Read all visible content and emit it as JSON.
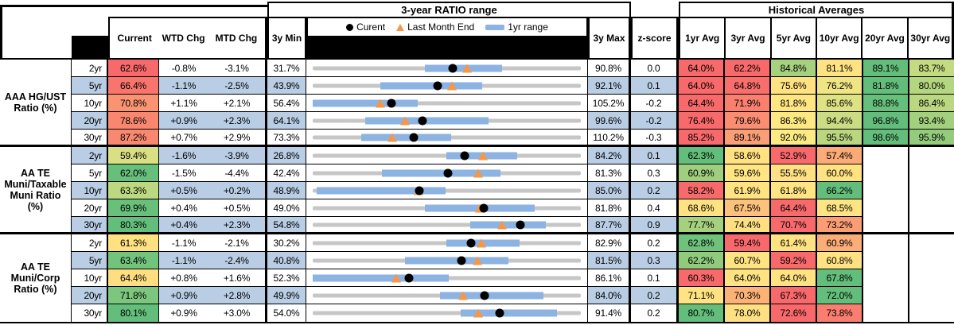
{
  "header": {
    "chart_section_title": "3-year RATIO range",
    "hist_section_title": "Historical Averages",
    "cols": {
      "current": "Current",
      "wtd": "WTD Chg",
      "mtd": "MTD Chg",
      "min": "3y Min",
      "max": "3y Max",
      "z": "z-score"
    },
    "avg_cols": [
      "1yr Avg",
      "3yr Avg",
      "5yr Avg",
      "10yr Avg",
      "20yr Avg",
      "30yr Avg"
    ],
    "legend": {
      "current": "Curent",
      "last_month": "Last Month End",
      "range": "1yr range"
    }
  },
  "colors": {
    "stripe_blue": "#B9CDE4",
    "track_gray": "#C6C6C6",
    "range_bar_blue": "#8DB3E2",
    "triangle_orange": "#F79646",
    "scale_red": "#F8696B",
    "scale_yellow": "#FFE383",
    "scale_green": "#63BE7B"
  },
  "groups": [
    {
      "label": "AAA HG/UST\nRatio (%)",
      "rows": [
        {
          "tenor": "2yr",
          "current": "62.6%",
          "cbg": "#F8696B",
          "wtd": "-0.8%",
          "mtd": "-3.1%",
          "min": "31.7%",
          "max": "90.8%",
          "z": "0.0",
          "avgs": [
            {
              "v": "64.0%",
              "bg": "#F8696B"
            },
            {
              "v": "62.2%",
              "bg": "#F8696B"
            },
            {
              "v": "84.8%",
              "bg": "#A6D17F"
            },
            {
              "v": "81.1%",
              "bg": "#FFE383"
            },
            {
              "v": "89.1%",
              "bg": "#63BE7B"
            },
            {
              "v": "83.7%",
              "bg": "#C4DB81"
            }
          ]
        },
        {
          "tenor": "5yr",
          "current": "66.4%",
          "cbg": "#F8756E",
          "wtd": "-1.1%",
          "mtd": "-2.5%",
          "min": "43.9%",
          "max": "92.1%",
          "z": "0.1",
          "avgs": [
            {
              "v": "64.0%",
              "bg": "#F8696B"
            },
            {
              "v": "64.8%",
              "bg": "#F86E6D"
            },
            {
              "v": "75.6%",
              "bg": "#FFE282"
            },
            {
              "v": "76.2%",
              "bg": "#F0E584"
            },
            {
              "v": "81.8%",
              "bg": "#63BE7B"
            },
            {
              "v": "80.0%",
              "bg": "#B5D680"
            }
          ]
        },
        {
          "tenor": "10yr",
          "current": "70.8%",
          "cbg": "#F99372",
          "wtd": "+1.1%",
          "mtd": "+2.1%",
          "min": "56.4%",
          "max": "105.2%",
          "z": "-0.2",
          "avgs": [
            {
              "v": "64.4%",
              "bg": "#F8696B"
            },
            {
              "v": "71.9%",
              "bg": "#F9806F"
            },
            {
              "v": "81.8%",
              "bg": "#FEE683"
            },
            {
              "v": "85.6%",
              "bg": "#DFE284"
            },
            {
              "v": "88.8%",
              "bg": "#66BF7B"
            },
            {
              "v": "86.4%",
              "bg": "#BBD880"
            }
          ]
        },
        {
          "tenor": "20yr",
          "current": "78.6%",
          "cbg": "#F98770",
          "wtd": "+0.9%",
          "mtd": "+2.3%",
          "min": "64.1%",
          "max": "99.6%",
          "z": "-0.2",
          "avgs": [
            {
              "v": "76.4%",
              "bg": "#F8696B"
            },
            {
              "v": "79.6%",
              "bg": "#FA8D72"
            },
            {
              "v": "86.3%",
              "bg": "#FDE883"
            },
            {
              "v": "94.4%",
              "bg": "#CADD82"
            },
            {
              "v": "96.8%",
              "bg": "#63BE7B"
            },
            {
              "v": "93.4%",
              "bg": "#A2D07E"
            }
          ]
        },
        {
          "tenor": "30yr",
          "current": "87.2%",
          "cbg": "#F98871",
          "wtd": "+0.7%",
          "mtd": "+2.9%",
          "min": "73.3%",
          "max": "110.2%",
          "z": "-0.3",
          "avgs": [
            {
              "v": "85.2%",
              "bg": "#F8696B"
            },
            {
              "v": "89.1%",
              "bg": "#FA9E76"
            },
            {
              "v": "92.0%",
              "bg": "#FCEA84"
            },
            {
              "v": "95.5%",
              "bg": "#BAD780"
            },
            {
              "v": "98.6%",
              "bg": "#63BE7B"
            },
            {
              "v": "95.9%",
              "bg": "#94CB7D"
            }
          ]
        }
      ]
    },
    {
      "label": "AA TE\nMuni/Taxable\nMuni Ratio\n(%)",
      "rows": [
        {
          "tenor": "2yr",
          "current": "59.4%",
          "cbg": "#D9E083",
          "wtd": "-1.6%",
          "mtd": "-3.9%",
          "min": "26.8%",
          "max": "84.2%",
          "z": "0.1",
          "avgs": [
            {
              "v": "62.3%",
              "bg": "#63BE7B"
            },
            {
              "v": "58.6%",
              "bg": "#FFE182"
            },
            {
              "v": "52.9%",
              "bg": "#F8696B"
            },
            {
              "v": "57.4%",
              "bg": "#FBAB77"
            },
            null,
            null
          ]
        },
        {
          "tenor": "5yr",
          "current": "62.0%",
          "cbg": "#66BF7B",
          "wtd": "-1.5%",
          "mtd": "-4.4%",
          "min": "42.4%",
          "max": "81.3%",
          "z": "0.3",
          "avgs": [
            {
              "v": "60.9%",
              "bg": "#9FCE7E"
            },
            {
              "v": "59.6%",
              "bg": "#FFE584"
            },
            {
              "v": "55.5%",
              "bg": "#FFE082"
            },
            {
              "v": "60.0%",
              "bg": "#FFE282"
            },
            null,
            null
          ]
        },
        {
          "tenor": "10yr",
          "current": "63.3%",
          "cbg": "#BCD880",
          "wtd": "+0.5%",
          "mtd": "+0.2%",
          "min": "48.9%",
          "max": "85.0%",
          "z": "0.2",
          "avgs": [
            {
              "v": "58.2%",
              "bg": "#F8696B"
            },
            {
              "v": "61.9%",
              "bg": "#FFE383"
            },
            {
              "v": "61.8%",
              "bg": "#FEE483"
            },
            {
              "v": "66.2%",
              "bg": "#63BE7B"
            },
            null,
            null
          ]
        },
        {
          "tenor": "20yr",
          "current": "69.9%",
          "cbg": "#68C07B",
          "wtd": "+0.4%",
          "mtd": "+0.5%",
          "min": "49.0%",
          "max": "81.8%",
          "z": "0.4",
          "avgs": [
            {
              "v": "68.6%",
              "bg": "#FFE382"
            },
            {
              "v": "67.5%",
              "bg": "#FCC17B"
            },
            {
              "v": "64.4%",
              "bg": "#F8696B"
            },
            {
              "v": "68.5%",
              "bg": "#FEE483"
            },
            null,
            null
          ]
        },
        {
          "tenor": "30yr",
          "current": "80.3%",
          "cbg": "#63BE7B",
          "wtd": "+0.4%",
          "mtd": "+2.3%",
          "min": "54.8%",
          "max": "87.7%",
          "z": "0.9",
          "avgs": [
            {
              "v": "77.7%",
              "bg": "#A5D17F"
            },
            {
              "v": "74.4%",
              "bg": "#FEE083"
            },
            {
              "v": "70.7%",
              "bg": "#F8696B"
            },
            {
              "v": "73.2%",
              "bg": "#FA9D75"
            },
            null,
            null
          ]
        }
      ]
    },
    {
      "label": "AA TE\nMuni/Corp\nRatio (%)",
      "rows": [
        {
          "tenor": "2yr",
          "current": "61.3%",
          "cbg": "#FFE182",
          "wtd": "-1.1%",
          "mtd": "-2.1%",
          "min": "30.2%",
          "max": "82.9%",
          "z": "0.2",
          "avgs": [
            {
              "v": "62.8%",
              "bg": "#6FC27C"
            },
            {
              "v": "59.4%",
              "bg": "#F8696B"
            },
            {
              "v": "61.4%",
              "bg": "#FFE383"
            },
            {
              "v": "60.9%",
              "bg": "#FBAD78"
            },
            null,
            null
          ]
        },
        {
          "tenor": "5yr",
          "current": "63.4%",
          "cbg": "#72C37C",
          "wtd": "-1.1%",
          "mtd": "-2.4%",
          "min": "40.8%",
          "max": "81.5%",
          "z": "0.3",
          "avgs": [
            {
              "v": "62.2%",
              "bg": "#8FCA7D"
            },
            {
              "v": "60.7%",
              "bg": "#FFE383"
            },
            {
              "v": "59.2%",
              "bg": "#F8696B"
            },
            {
              "v": "60.8%",
              "bg": "#FFE283"
            },
            null,
            null
          ]
        },
        {
          "tenor": "10yr",
          "current": "64.4%",
          "cbg": "#FEDE80",
          "wtd": "+0.8%",
          "mtd": "+1.6%",
          "min": "52.3%",
          "max": "86.1%",
          "z": "0.1",
          "avgs": [
            {
              "v": "60.3%",
              "bg": "#F8696B"
            },
            {
              "v": "64.0%",
              "bg": "#FFE383"
            },
            {
              "v": "64.0%",
              "bg": "#FFE383"
            },
            {
              "v": "67.8%",
              "bg": "#63BE7B"
            },
            null,
            null
          ]
        },
        {
          "tenor": "20yr",
          "current": "71.8%",
          "cbg": "#7CC67D",
          "wtd": "+0.9%",
          "mtd": "+2.8%",
          "min": "49.9%",
          "max": "84.0%",
          "z": "0.2",
          "avgs": [
            {
              "v": "71.1%",
              "bg": "#FFE382"
            },
            {
              "v": "70.3%",
              "bg": "#FBB277"
            },
            {
              "v": "67.3%",
              "bg": "#F8696B"
            },
            {
              "v": "72.0%",
              "bg": "#63BE7B"
            },
            null,
            null
          ]
        },
        {
          "tenor": "30yr",
          "current": "80.1%",
          "cbg": "#63BE7B",
          "wtd": "+0.9%",
          "mtd": "+3.0%",
          "min": "54.0%",
          "max": "91.4%",
          "z": "0.2",
          "avgs": [
            {
              "v": "80.7%",
              "bg": "#63BE7B"
            },
            {
              "v": "78.0%",
              "bg": "#FEE083"
            },
            {
              "v": "72.6%",
              "bg": "#F8696B"
            },
            {
              "v": "73.8%",
              "bg": "#F97E6F"
            },
            null,
            null
          ]
        }
      ]
    }
  ],
  "chart_data": {
    "type": "bullet-range",
    "title": "3-year RATIO range",
    "legend": [
      "Curent (dot)",
      "Last Month End (triangle)",
      "1yr range (bar)"
    ],
    "axis": "each row scaled from its own 3y Min to 3y Max",
    "rows": [
      {
        "group": "AAA HG/UST",
        "tenor": "2yr",
        "min3y": 31.7,
        "max3y": 90.8,
        "current": 62.6,
        "last_month_end": 65.7,
        "yr1_low": 56.4,
        "yr1_high": 73.4
      },
      {
        "group": "AAA HG/UST",
        "tenor": "5yr",
        "min3y": 43.9,
        "max3y": 92.1,
        "current": 66.4,
        "last_month_end": 68.9,
        "yr1_low": 56.0,
        "yr1_high": 74.3
      },
      {
        "group": "AAA HG/UST",
        "tenor": "10yr",
        "min3y": 56.4,
        "max3y": 105.2,
        "current": 70.8,
        "last_month_end": 68.7,
        "yr1_low": 56.4,
        "yr1_high": 75.5
      },
      {
        "group": "AAA HG/UST",
        "tenor": "20yr",
        "min3y": 64.1,
        "max3y": 99.6,
        "current": 78.6,
        "last_month_end": 76.3,
        "yr1_low": 71.1,
        "yr1_high": 87.4
      },
      {
        "group": "AAA HG/UST",
        "tenor": "30yr",
        "min3y": 73.3,
        "max3y": 110.2,
        "current": 87.2,
        "last_month_end": 84.3,
        "yr1_low": 80.0,
        "yr1_high": 92.4
      },
      {
        "group": "AA TE Muni/Taxable",
        "tenor": "2yr",
        "min3y": 26.8,
        "max3y": 84.2,
        "current": 59.4,
        "last_month_end": 63.3,
        "yr1_low": 55.4,
        "yr1_high": 70.6
      },
      {
        "group": "AA TE Muni/Taxable",
        "tenor": "5yr",
        "min3y": 42.4,
        "max3y": 81.3,
        "current": 62.0,
        "last_month_end": 66.4,
        "yr1_low": 52.4,
        "yr1_high": 69.6
      },
      {
        "group": "AA TE Muni/Taxable",
        "tenor": "10yr",
        "min3y": 48.9,
        "max3y": 85.0,
        "current": 63.3,
        "last_month_end": 63.1,
        "yr1_low": 49.4,
        "yr1_high": 66.8
      },
      {
        "group": "AA TE Muni/Taxable",
        "tenor": "20yr",
        "min3y": 49.0,
        "max3y": 81.8,
        "current": 69.9,
        "last_month_end": 69.4,
        "yr1_low": 62.7,
        "yr1_high": 76.2
      },
      {
        "group": "AA TE Muni/Taxable",
        "tenor": "30yr",
        "min3y": 54.8,
        "max3y": 87.7,
        "current": 80.3,
        "last_month_end": 78.0,
        "yr1_low": 74.1,
        "yr1_high": 83.4
      },
      {
        "group": "AA TE Muni/Corp",
        "tenor": "2yr",
        "min3y": 30.2,
        "max3y": 82.9,
        "current": 61.3,
        "last_month_end": 63.4,
        "yr1_low": 56.4,
        "yr1_high": 70.8
      },
      {
        "group": "AA TE Muni/Corp",
        "tenor": "5yr",
        "min3y": 40.8,
        "max3y": 81.5,
        "current": 63.4,
        "last_month_end": 65.8,
        "yr1_low": 54.8,
        "yr1_high": 70.5
      },
      {
        "group": "AA TE Muni/Corp",
        "tenor": "10yr",
        "min3y": 52.3,
        "max3y": 86.1,
        "current": 64.4,
        "last_month_end": 62.8,
        "yr1_low": 52.3,
        "yr1_high": 69.5
      },
      {
        "group": "AA TE Muni/Corp",
        "tenor": "20yr",
        "min3y": 49.9,
        "max3y": 84.0,
        "current": 71.8,
        "last_month_end": 69.0,
        "yr1_low": 66.1,
        "yr1_high": 79.2
      },
      {
        "group": "AA TE Muni/Corp",
        "tenor": "30yr",
        "min3y": 54.0,
        "max3y": 91.4,
        "current": 80.1,
        "last_month_end": 77.1,
        "yr1_low": 74.6,
        "yr1_high": 88.1
      }
    ]
  }
}
